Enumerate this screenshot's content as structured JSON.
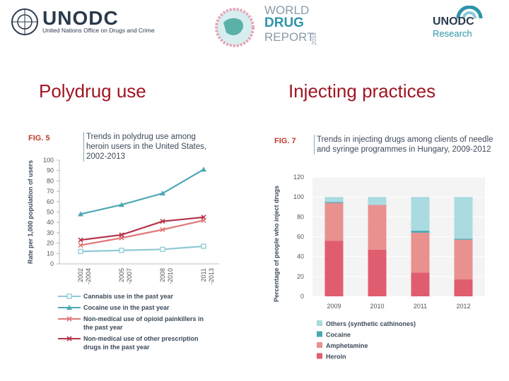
{
  "header": {
    "org_name": "UNODC",
    "org_full": "United Nations Office on Drugs and Crime",
    "report_line1": "WORLD",
    "report_line2": "DRUG",
    "report_line3": "REPORT",
    "report_year": "2016",
    "research_line1": "UNODC",
    "research_line2": "Research"
  },
  "sections": {
    "left": "Polydrug use",
    "right": "Injecting practices"
  },
  "chart_data": [
    {
      "type": "line",
      "fig_label": "FIG. 5",
      "title": "Trends in polydrug use among heroin users in the United States, 2002-2013",
      "ylabel": "Rate per 1,000 population of users",
      "ylim": [
        0,
        100
      ],
      "yticks": [
        0,
        10,
        20,
        30,
        40,
        50,
        60,
        70,
        80,
        90,
        100
      ],
      "categories": [
        "2002 -2004",
        "2005 -2007",
        "2008 -2010",
        "2011 -2013"
      ],
      "series": [
        {
          "name": "Cannabis use in the past year",
          "values": [
            12,
            13,
            14,
            17
          ],
          "color": "#8ec9d6",
          "marker": "square"
        },
        {
          "name": "Cocaine use in the past year",
          "values": [
            48,
            57,
            68,
            91
          ],
          "color": "#4da7b5",
          "marker": "triangle"
        },
        {
          "name": "Non-medical use of opioid painkillers in the past year",
          "values": [
            18,
            25,
            33,
            42
          ],
          "color": "#e07878",
          "marker": "x"
        },
        {
          "name": "Non-medical use of other prescription drugs in the past year",
          "values": [
            23,
            28,
            41,
            45
          ],
          "color": "#b5334a",
          "marker": "x"
        }
      ]
    },
    {
      "type": "bar",
      "fig_label": "FIG. 7",
      "title": "Trends in injecting drugs among clients of needle and syringe programmes in Hungary, 2009-2012",
      "ylabel": "Percentage of people who inject drugs",
      "ylim": [
        0,
        120
      ],
      "yticks": [
        0,
        20,
        40,
        60,
        80,
        100,
        120
      ],
      "categories": [
        "2009",
        "2010",
        "2011",
        "2012"
      ],
      "series": [
        {
          "name": "Heroin",
          "values": [
            56,
            47,
            24,
            17
          ],
          "color": "#e05d6f"
        },
        {
          "name": "Amphetamine",
          "values": [
            38,
            45,
            40,
            40
          ],
          "color": "#e8918f"
        },
        {
          "name": "Cocaine",
          "values": [
            1,
            0,
            2,
            1
          ],
          "color": "#4aa6b3"
        },
        {
          "name": "Others (synthetic cathinones)",
          "values": [
            5,
            8,
            34,
            42
          ],
          "color": "#a9dbe1"
        }
      ],
      "legend_order": [
        "Others (synthetic cathinones)",
        "Cocaine",
        "Amphetamine",
        "Heroin"
      ]
    }
  ]
}
